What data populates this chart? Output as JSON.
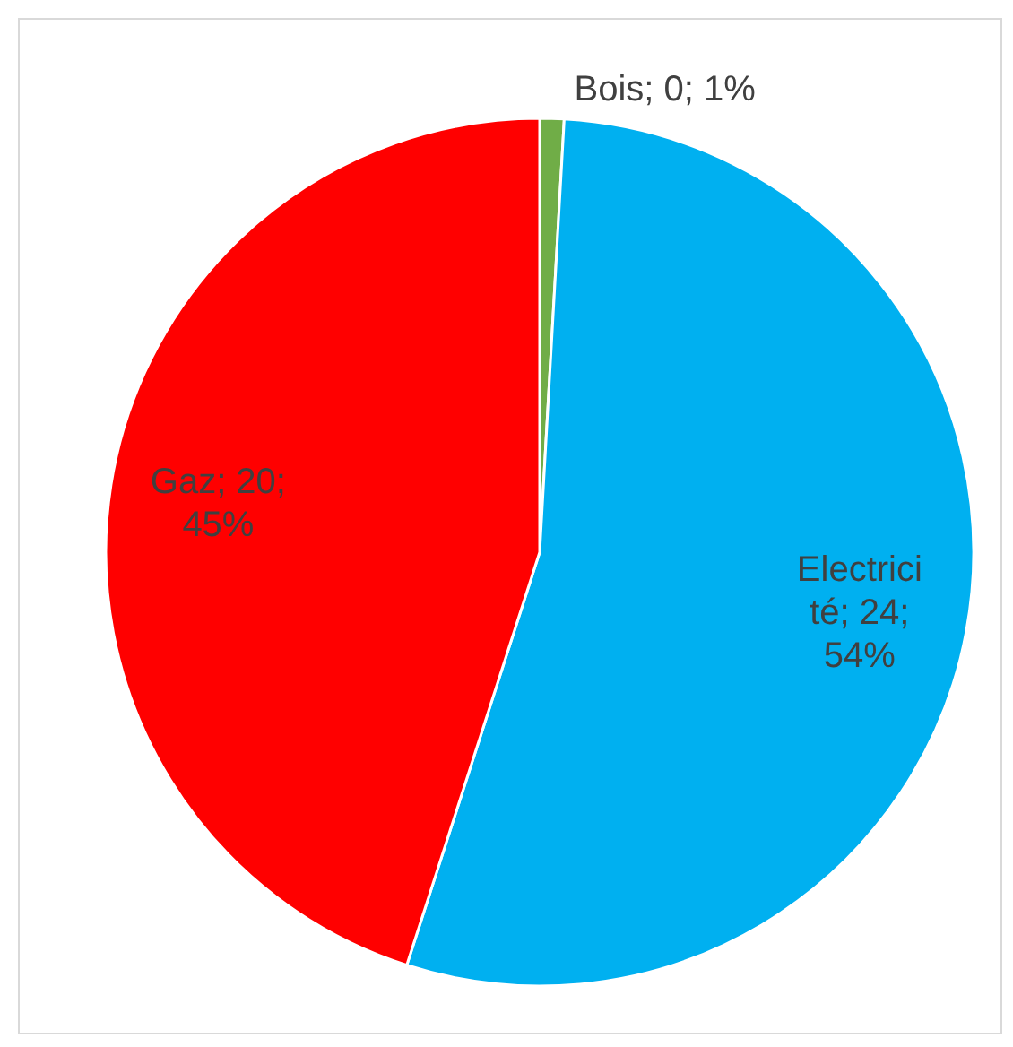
{
  "chart_data": {
    "type": "pie",
    "categories": [
      "Bois",
      "Electricité",
      "Gaz"
    ],
    "values": [
      0.4,
      24,
      20
    ],
    "colors": [
      "#70ad47",
      "#00b0f0",
      "#ff0000"
    ],
    "value_labels": [
      "0; 1%",
      "24; 54%",
      "20; 45%"
    ]
  }
}
